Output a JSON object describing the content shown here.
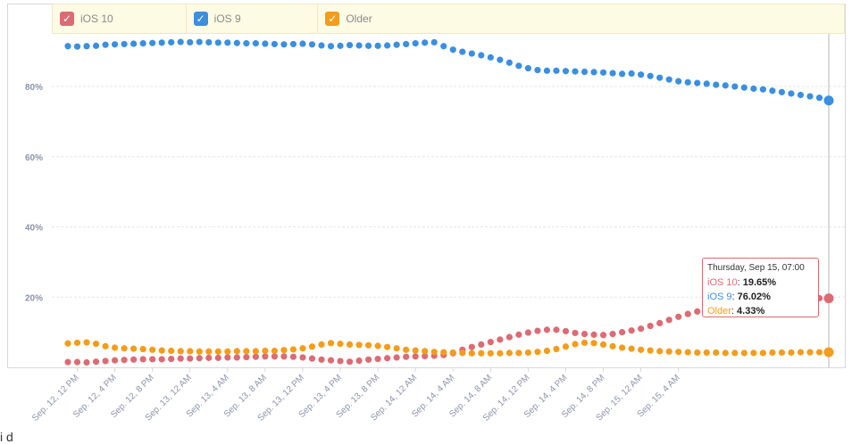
{
  "legend": [
    {
      "label": "iOS 10",
      "color": "#dd6b74",
      "checked": true
    },
    {
      "label": "iOS 9",
      "color": "#3b8fe0",
      "checked": true
    },
    {
      "label": "Older",
      "color": "#f59c1a",
      "checked": true
    }
  ],
  "tooltip": {
    "header": "Thursday, Sep 15, 07:00",
    "rows": [
      {
        "name": "iOS 10",
        "value": "19.65%",
        "color": "#dd6b74"
      },
      {
        "name": "iOS 9",
        "value": "76.02%",
        "color": "#3b8fe0"
      },
      {
        "name": "Older",
        "value": "4.33%",
        "color": "#f59c1a"
      }
    ]
  },
  "chart_data": {
    "type": "scatter",
    "title": "",
    "xlabel": "",
    "ylabel": "",
    "ylim": [
      0,
      95
    ],
    "y_ticks": [
      "20%",
      "40%",
      "60%",
      "80%"
    ],
    "x_ticks": [
      "Sep. 12, 12 PM",
      "Sep. 12, 4 PM",
      "Sep. 12, 8 PM",
      "Sep. 13, 12 AM",
      "Sep. 13, 4 AM",
      "Sep. 13, 8 AM",
      "Sep. 13, 12 PM",
      "Sep. 13, 4 PM",
      "Sep. 13, 8 PM",
      "Sep. 14, 12 AM",
      "Sep. 14, 4 AM",
      "Sep. 14, 8 AM",
      "Sep. 14, 12 PM",
      "Sep. 14, 4 PM",
      "Sep. 14, 8 PM",
      "Sep. 15, 12 AM",
      "Sep. 15, 4 AM"
    ],
    "x_start": "Sep. 12, 11 AM",
    "x_step_hours": 1,
    "grid": true,
    "legend_position": "top",
    "series": [
      {
        "name": "iOS 10",
        "color": "#dd6b74",
        "values": [
          1.5,
          1.5,
          1.4,
          1.6,
          1.8,
          2.0,
          2.1,
          2.2,
          2.3,
          2.3,
          2.3,
          2.4,
          2.5,
          2.5,
          2.6,
          2.7,
          2.7,
          2.8,
          2.8,
          2.9,
          3.0,
          3.1,
          3.1,
          3.1,
          3.0,
          2.8,
          2.5,
          2.2,
          2.0,
          1.8,
          1.6,
          1.9,
          2.2,
          2.4,
          2.6,
          2.8,
          3.0,
          3.1,
          3.2,
          3.3,
          3.5,
          4.0,
          5.0,
          5.8,
          6.5,
          7.2,
          7.9,
          8.6,
          9.3,
          9.9,
          10.4,
          10.7,
          10.7,
          10.3,
          9.8,
          9.5,
          9.3,
          9.2,
          9.5,
          10.0,
          10.5,
          11.0,
          11.8,
          12.6,
          13.5,
          14.4,
          15.2,
          15.9,
          16.5,
          17.1,
          17.6,
          18.0,
          18.3,
          18.6,
          18.8,
          19.0,
          19.2,
          19.4,
          19.5,
          19.6,
          19.7,
          19.65
        ]
      },
      {
        "name": "iOS 9",
        "color": "#3b8fe0",
        "values": [
          91.5,
          91.4,
          91.5,
          91.6,
          91.9,
          92.0,
          92.1,
          92.2,
          92.3,
          92.4,
          92.5,
          92.6,
          92.7,
          92.6,
          92.7,
          92.6,
          92.5,
          92.5,
          92.4,
          92.3,
          92.3,
          92.2,
          92.1,
          92.0,
          92.1,
          92.2,
          92.0,
          91.7,
          91.5,
          91.6,
          91.8,
          91.7,
          91.6,
          91.6,
          91.7,
          91.9,
          92.1,
          92.3,
          92.5,
          92.6,
          91.5,
          90.5,
          89.9,
          89.4,
          88.9,
          88.3,
          87.6,
          86.8,
          85.9,
          85.2,
          84.7,
          84.5,
          84.5,
          84.4,
          84.3,
          84.2,
          84.1,
          84.0,
          83.8,
          83.6,
          83.7,
          83.4,
          83.0,
          82.5,
          82.0,
          81.5,
          81.2,
          81.0,
          80.8,
          80.5,
          80.3,
          80.0,
          79.7,
          79.4,
          79.2,
          78.8,
          78.4,
          78.0,
          77.6,
          77.2,
          76.8,
          76.02
        ]
      },
      {
        "name": "Older",
        "color": "#f59c1a",
        "values": [
          6.8,
          7.0,
          7.1,
          6.7,
          6.0,
          5.6,
          5.4,
          5.3,
          5.2,
          5.0,
          4.8,
          4.7,
          4.6,
          4.6,
          4.5,
          4.5,
          4.5,
          4.5,
          4.6,
          4.6,
          4.6,
          4.7,
          4.7,
          4.9,
          5.1,
          5.4,
          5.9,
          6.5,
          6.9,
          6.7,
          6.5,
          6.4,
          6.3,
          6.1,
          5.8,
          5.4,
          5.0,
          4.8,
          4.6,
          4.4,
          4.3,
          4.2,
          4.1,
          4.0,
          4.0,
          4.0,
          4.0,
          4.1,
          4.1,
          4.2,
          4.4,
          4.7,
          5.2,
          5.9,
          6.6,
          7.0,
          6.9,
          6.5,
          6.0,
          5.6,
          5.3,
          5.0,
          4.8,
          4.6,
          4.5,
          4.4,
          4.3,
          4.2,
          4.2,
          4.2,
          4.1,
          4.1,
          4.1,
          4.1,
          4.1,
          4.2,
          4.2,
          4.2,
          4.3,
          4.3,
          4.3,
          4.33
        ]
      }
    ]
  },
  "footer_text": "i     d"
}
